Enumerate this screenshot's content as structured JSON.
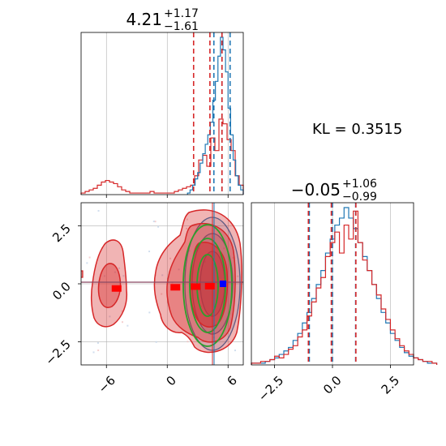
{
  "chart_data": {
    "type": "corner",
    "colors": {
      "red": "#d62728",
      "blue": "#1f77b4",
      "green": "#2ca02c",
      "marker_red": "#ff0000",
      "marker_blue": "#0000ff",
      "grid": "#b0b0b0"
    },
    "kl_text": "KL = 0.3515",
    "param1": {
      "title_main": "4.21",
      "title_plus": "+1.17",
      "title_minus": "−1.61",
      "range": [
        -8.5,
        7.5
      ],
      "ticks": [
        -6,
        0,
        6
      ],
      "tick_labels": [
        "−6",
        "0",
        "6"
      ],
      "quantiles_red": [
        2.6,
        4.21,
        5.4
      ],
      "quantiles_blue": [
        4.6,
        5.4,
        6.2
      ],
      "hist_red": {
        "bins_start": -8.5,
        "bin_width": 0.4,
        "counts": [
          1,
          2,
          3,
          4,
          6,
          8,
          9,
          8,
          7,
          5,
          3,
          2,
          1,
          1,
          1,
          1,
          1,
          2,
          1,
          1,
          1,
          1,
          1,
          2,
          3,
          4,
          5,
          6,
          12,
          22,
          25,
          18,
          36,
          28,
          48,
          45,
          35,
          28,
          12,
          6
        ]
      },
      "hist_blue": {
        "bins_start": 2.0,
        "bin_width": 0.25,
        "counts": [
          1,
          3,
          6,
          10,
          14,
          20,
          26,
          32,
          38,
          46,
          60,
          72,
          88,
          100,
          92,
          78,
          55,
          38,
          22,
          12,
          6,
          3
        ]
      }
    },
    "param2": {
      "title_main": "−0.05",
      "title_plus": "+1.06",
      "title_minus": "−0.99",
      "range": [
        -3.5,
        3.5
      ],
      "ticks": [
        -2.5,
        0.0,
        2.5
      ],
      "tick_labels": [
        "−2.5",
        "0.0",
        "2.5"
      ],
      "quantiles_red": [
        -1.04,
        -0.05,
        1.01
      ],
      "quantiles_blue": [
        -1.0,
        0.0,
        1.0
      ],
      "hist_red": {
        "bins_start": -3.5,
        "bin_width": 0.2,
        "counts": [
          1,
          1,
          2,
          2,
          3,
          5,
          4,
          6,
          9,
          11,
          16,
          20,
          28,
          36,
          44,
          50,
          62,
          70,
          76,
          64,
          80,
          72,
          88,
          70,
          60,
          54,
          46,
          40,
          32,
          26,
          20,
          15,
          11,
          8,
          6,
          4,
          3,
          2,
          2,
          1
        ]
      },
      "hist_blue": {
        "bins_start": -3.5,
        "bin_width": 0.2,
        "counts": [
          1,
          1,
          1,
          2,
          3,
          4,
          6,
          8,
          10,
          14,
          18,
          24,
          30,
          38,
          46,
          54,
          64,
          72,
          80,
          84,
          90,
          84,
          78,
          70,
          62,
          54,
          46,
          38,
          30,
          24,
          18,
          14,
          10,
          7,
          5,
          4,
          3,
          2,
          1,
          1
        ]
      }
    },
    "joint": {
      "red_markers": [
        {
          "x": -5.0,
          "y": -0.2
        },
        {
          "x": 0.8,
          "y": -0.15
        },
        {
          "x": 2.8,
          "y": -0.12
        },
        {
          "x": 4.2,
          "y": -0.1
        }
      ],
      "blue_marker": {
        "x": 5.5,
        "y": 0.0
      }
    }
  }
}
